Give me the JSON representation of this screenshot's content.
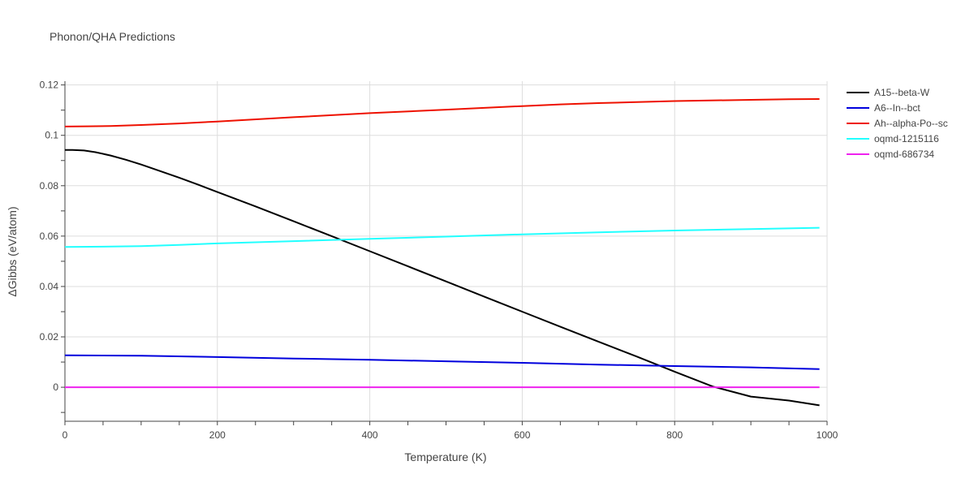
{
  "chart_data": {
    "type": "line",
    "title": "Phonon/QHA Predictions",
    "xlabel": "Temperature (K)",
    "ylabel": "ΔGibbs (eV/atom)",
    "xlim": [
      0,
      1000
    ],
    "ylim": [
      -0.0135,
      0.1215
    ],
    "x_ticks": [
      0,
      200,
      400,
      600,
      800,
      1000
    ],
    "y_ticks": [
      0,
      0.02,
      0.04,
      0.06,
      0.08,
      0.1,
      0.12
    ],
    "x_tick_labels": [
      "0",
      "200",
      "400",
      "600",
      "800",
      "1000"
    ],
    "y_tick_labels": [
      "0",
      "0.02",
      "0.04",
      "0.06",
      "0.08",
      "0.1",
      "0.12"
    ],
    "grid": true,
    "legend_position": "top-right",
    "series": [
      {
        "name": "A15--beta-W",
        "color": "#000000",
        "x": [
          0,
          10,
          25,
          40,
          60,
          80,
          100,
          125,
          150,
          175,
          200,
          250,
          300,
          350,
          400,
          450,
          500,
          550,
          600,
          650,
          700,
          750,
          800,
          850,
          900,
          950,
          990
        ],
        "y": [
          0.0942,
          0.0942,
          0.094,
          0.0933,
          0.092,
          0.0903,
          0.0884,
          0.0858,
          0.0832,
          0.0804,
          0.0775,
          0.0718,
          0.0659,
          0.06,
          0.054,
          0.048,
          0.042,
          0.036,
          0.03,
          0.024,
          0.0181,
          0.0122,
          0.0062,
          0.0003,
          -0.0037,
          -0.0053,
          -0.0072
        ]
      },
      {
        "name": "A6--In--bct",
        "color": "#0000dd",
        "x": [
          0,
          50,
          100,
          200,
          300,
          400,
          500,
          600,
          700,
          800,
          900,
          990
        ],
        "y": [
          0.0127,
          0.0126,
          0.0125,
          0.012,
          0.0114,
          0.0109,
          0.0103,
          0.0097,
          0.009,
          0.0084,
          0.0079,
          0.0072
        ]
      },
      {
        "name": "Ah--alpha-Po--sc",
        "color": "#ee1100",
        "x": [
          0,
          30,
          60,
          100,
          150,
          200,
          300,
          400,
          500,
          600,
          650,
          700,
          800,
          900,
          950,
          990
        ],
        "y": [
          0.1035,
          0.1036,
          0.1037,
          0.1041,
          0.1047,
          0.1055,
          0.1072,
          0.1088,
          0.1102,
          0.1116,
          0.1123,
          0.1128,
          0.1136,
          0.1141,
          0.1143,
          0.1144
        ]
      },
      {
        "name": "oqmd-1215116",
        "color": "#22ffff",
        "x": [
          0,
          50,
          100,
          150,
          200,
          300,
          400,
          500,
          600,
          700,
          800,
          900,
          990
        ],
        "y": [
          0.0557,
          0.0558,
          0.056,
          0.0565,
          0.0571,
          0.058,
          0.0589,
          0.0598,
          0.0607,
          0.0615,
          0.0622,
          0.0628,
          0.0633
        ]
      },
      {
        "name": "oqmd-686734",
        "color": "#ee22ee",
        "x": [
          0,
          990
        ],
        "y": [
          0.0,
          0.0
        ]
      }
    ]
  }
}
